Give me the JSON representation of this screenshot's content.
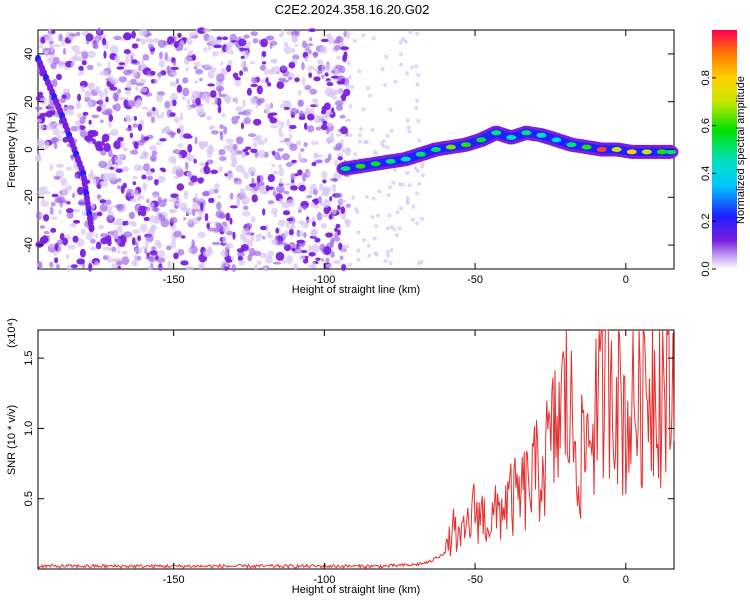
{
  "title": "C2E2.2024.358.16.20.G02",
  "colors": {
    "axis": "#000000",
    "snr_line": "#e62e2e",
    "scatter": "#7a1fe0"
  },
  "chart_data": [
    {
      "type": "heatmap",
      "xlabel": "Height of straight line (km)",
      "ylabel": "Frequency (Hz)",
      "xlim": [
        -195,
        16
      ],
      "ylim": [
        -50,
        50
      ],
      "xticks": [
        -150,
        -100,
        -50,
        0
      ],
      "xtick_labels": [
        "-150",
        "-100",
        "-50",
        "0"
      ],
      "yticks": [
        -40,
        -20,
        0,
        20,
        40
      ],
      "ytick_labels": [
        "-40",
        "-20",
        "0",
        "20",
        "40"
      ],
      "colorbar": {
        "label": "Normalized spectral amplitude",
        "range": [
          0,
          1
        ],
        "ticks": [
          0.0,
          0.2,
          0.4,
          0.6,
          0.8
        ],
        "tick_labels": [
          "0.0",
          "0.2",
          "0.4",
          "0.6",
          "0.8"
        ],
        "colormap": "rainbow (purple to red)"
      },
      "noise_region_x": [
        -195,
        -92
      ],
      "signal_track": {
        "x": [
          -93,
          -88,
          -83,
          -78,
          -73,
          -68,
          -63,
          -58,
          -53,
          -48,
          -43,
          -38,
          -33,
          -28,
          -23,
          -18,
          -13,
          -8,
          -3,
          2,
          7,
          12,
          15
        ],
        "y": [
          -8,
          -7,
          -6,
          -5,
          -4,
          -2,
          0,
          1,
          2,
          4,
          7,
          5,
          7,
          6,
          4,
          2,
          1,
          0,
          0,
          -1,
          -1,
          -1,
          -1
        ],
        "amplitude": [
          0.5,
          0.6,
          0.55,
          0.5,
          0.45,
          0.5,
          0.5,
          0.65,
          0.6,
          0.55,
          0.5,
          0.45,
          0.5,
          0.45,
          0.4,
          0.5,
          0.6,
          0.95,
          0.7,
          0.8,
          0.7,
          0.6,
          0.5
        ]
      },
      "diagonal_feature": {
        "x": [
          -195,
          -187,
          -180,
          -177
        ],
        "y": [
          38,
          14,
          -10,
          -35
        ]
      }
    },
    {
      "type": "line",
      "xlabel": "Height of straight line (km)",
      "ylabel": "SNR (10 * v/v)",
      "y_multiplier": "(x10⁴)",
      "xlim": [
        -195,
        16
      ],
      "ylim": [
        0,
        1.7
      ],
      "xticks": [
        -150,
        -100,
        -50,
        0
      ],
      "xtick_labels": [
        "-150",
        "-100",
        "-50",
        "0"
      ],
      "yticks": [
        0.5,
        1.0,
        1.5
      ],
      "ytick_labels": [
        "0.5",
        "1.0",
        "1.5"
      ],
      "series": [
        {
          "x": [
            -195,
            -180,
            -160,
            -140,
            -120,
            -100,
            -90,
            -80,
            -70,
            -65,
            -60,
            -57,
            -55,
            -50,
            -45,
            -40,
            -35,
            -30,
            -25,
            -20,
            -15,
            -10,
            -5,
            0,
            5,
            10,
            15
          ],
          "y": [
            0.02,
            0.02,
            0.02,
            0.02,
            0.02,
            0.02,
            0.02,
            0.02,
            0.03,
            0.05,
            0.12,
            0.3,
            0.2,
            0.45,
            0.35,
            0.5,
            0.55,
            0.7,
            0.9,
            1.3,
            0.8,
            1.2,
            1.65,
            1.1,
            1.4,
            1.5,
            1.3
          ]
        }
      ]
    }
  ]
}
